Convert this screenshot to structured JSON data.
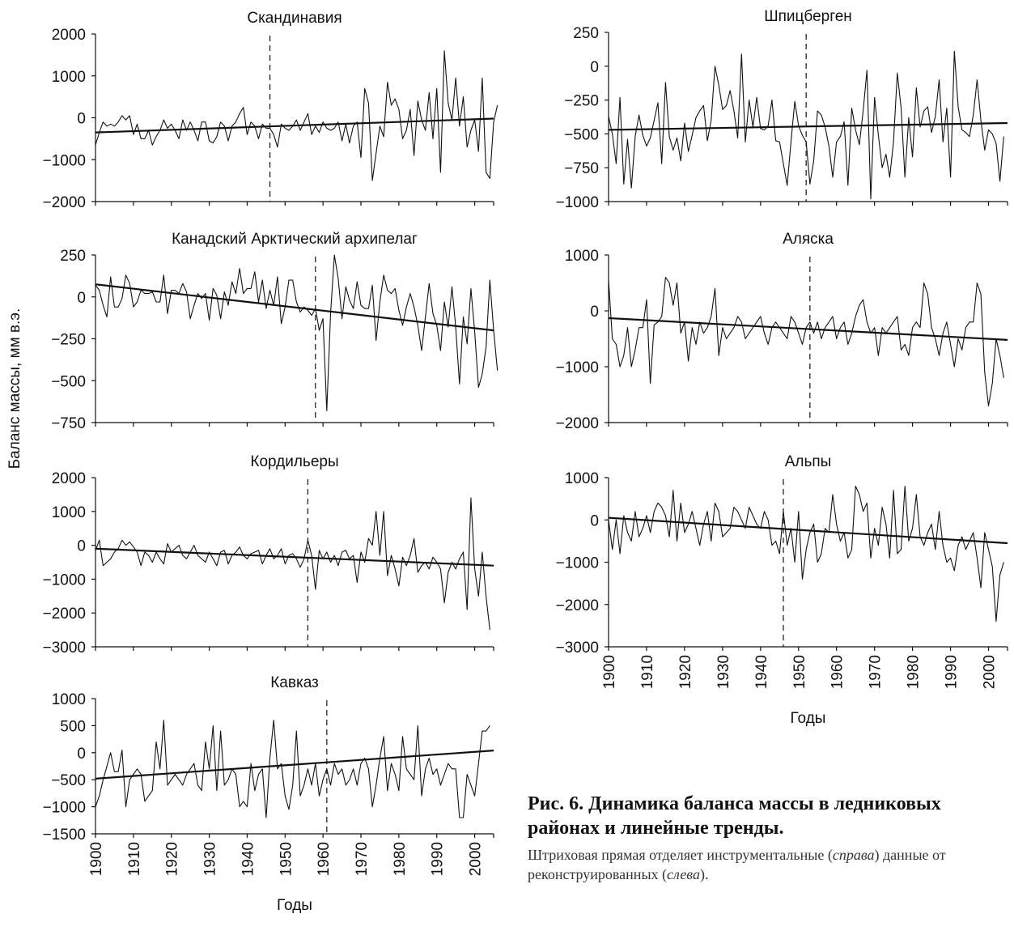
{
  "figure": {
    "ylabel": "Баланс массы, мм в.э.",
    "xlabel": "Годы",
    "caption_title": "Рис. 6. Динамика баланса массы в ледниковых районах и линейные тренды.",
    "caption_note_parts": [
      "Штриховая прямая отделяет инструментальные (",
      "справа",
      ") данные от реконструированных (",
      "слева",
      ")."
    ]
  },
  "chart_data": [
    {
      "type": "line",
      "title": "Скандинавия",
      "xlim": [
        1900,
        2005
      ],
      "ylim": [
        -2000,
        2000
      ],
      "yticks": [
        2000,
        1000,
        0,
        -1000,
        -2000
      ],
      "divider_year": 1946,
      "trend": [
        [
          1900,
          -350
        ],
        [
          2005,
          -20
        ]
      ],
      "series": [
        {
          "x_start": 1900,
          "values": [
            -650,
            -350,
            -100,
            -200,
            -150,
            -200,
            -100,
            50,
            -50,
            50,
            -400,
            -150,
            -500,
            -500,
            -300,
            -650,
            -450,
            -300,
            -50,
            -250,
            -150,
            -300,
            -500,
            -50,
            -300,
            -100,
            -300,
            -550,
            -100,
            -100,
            -550,
            -600,
            -450,
            -100,
            -200,
            -550,
            -200,
            -100,
            100,
            250,
            -400,
            -100,
            -200,
            -500,
            -150,
            -250,
            -250,
            -400,
            -700,
            -150,
            -250,
            -300,
            -200,
            -50,
            -300,
            -100,
            100,
            -400,
            -200,
            -350,
            -100,
            -250,
            -300,
            -250,
            -100,
            -550,
            -150,
            -600,
            -200,
            -100,
            -950,
            700,
            350,
            -1500,
            -850,
            -200,
            -450,
            850,
            300,
            450,
            200,
            -500,
            -300,
            200,
            -900,
            400,
            -50,
            -300,
            600,
            -500,
            700,
            -1300,
            1600,
            350,
            -50,
            950,
            -200,
            500,
            -700,
            -300,
            -50,
            -800,
            950,
            -1300,
            -1450,
            -100,
            300
          ]
        }
      ]
    },
    {
      "type": "line",
      "title": "Канадский Арктический архипелаг",
      "xlim": [
        1900,
        2005
      ],
      "ylim": [
        -750,
        250
      ],
      "yticks": [
        250,
        0,
        -250,
        -500,
        -750
      ],
      "divider_year": 1958,
      "trend": [
        [
          1900,
          75
        ],
        [
          2005,
          -200
        ]
      ],
      "series": [
        {
          "x_start": 1900,
          "values": [
            70,
            40,
            -50,
            -120,
            120,
            -60,
            -60,
            -10,
            130,
            80,
            -60,
            -30,
            40,
            20,
            20,
            30,
            -30,
            -30,
            130,
            -100,
            40,
            40,
            20,
            80,
            30,
            -130,
            -50,
            20,
            -10,
            20,
            -140,
            50,
            10,
            -130,
            30,
            -50,
            90,
            20,
            170,
            20,
            50,
            50,
            150,
            -30,
            100,
            -70,
            40,
            -50,
            120,
            -160,
            -60,
            100,
            100,
            -30,
            -90,
            -60,
            -80,
            -110,
            -70,
            -200,
            -130,
            -680,
            -100,
            250,
            110,
            -130,
            60,
            -20,
            -70,
            90,
            -50,
            -70,
            -70,
            70,
            -260,
            -30,
            130,
            40,
            20,
            50,
            -80,
            -170,
            -60,
            20,
            -60,
            -170,
            -320,
            -120,
            80,
            -100,
            -170,
            -320,
            -30,
            -180,
            60,
            -180,
            -520,
            -120,
            -280,
            50,
            -210,
            -540,
            -460,
            -300,
            100,
            -200,
            -440
          ]
        }
      ]
    },
    {
      "type": "line",
      "title": "Кордильеры",
      "xlim": [
        1900,
        2005
      ],
      "ylim": [
        -3000,
        2000
      ],
      "yticks": [
        2000,
        1000,
        0,
        -1000,
        -2000,
        -3000
      ],
      "divider_year": 1956,
      "trend": [
        [
          1900,
          -100
        ],
        [
          2005,
          -600
        ]
      ],
      "series": [
        {
          "x_start": 1900,
          "values": [
            -150,
            150,
            -600,
            -500,
            -400,
            -200,
            -100,
            150,
            0,
            100,
            -50,
            -200,
            -600,
            -200,
            -300,
            -500,
            -200,
            -400,
            -550,
            50,
            -200,
            -100,
            0,
            -300,
            -400,
            -200,
            0,
            -300,
            -400,
            -500,
            -200,
            -400,
            -600,
            -200,
            -150,
            -550,
            -300,
            -200,
            -50,
            -300,
            -400,
            -250,
            -200,
            -150,
            -550,
            -300,
            -100,
            -400,
            -300,
            -100,
            -550,
            -300,
            -250,
            -400,
            -650,
            -400,
            150,
            -300,
            -1300,
            -150,
            -400,
            -200,
            -500,
            -300,
            -600,
            -200,
            -150,
            -400,
            -300,
            -1100,
            -200,
            -500,
            200,
            0,
            1000,
            -300,
            1000,
            -900,
            -300,
            -700,
            -1200,
            -350,
            -600,
            -300,
            200,
            -800,
            -600,
            -500,
            -700,
            -350,
            -500,
            -700,
            -1700,
            -800,
            -500,
            -700,
            -400,
            -200,
            -1900,
            1400,
            -700,
            -1500,
            -200,
            -1500,
            -2500
          ]
        }
      ]
    },
    {
      "type": "line",
      "title": "Кавказ",
      "xlim": [
        1900,
        2005
      ],
      "ylim": [
        -1500,
        1000
      ],
      "yticks": [
        1000,
        500,
        0,
        -500,
        -1000,
        -1500
      ],
      "divider_year": 1961,
      "trend": [
        [
          1900,
          -480
        ],
        [
          2005,
          40
        ]
      ],
      "series": [
        {
          "x_start": 1900,
          "values": [
            -1000,
            -800,
            -500,
            -250,
            0,
            -350,
            -350,
            50,
            -1000,
            -500,
            -400,
            -300,
            -400,
            -900,
            -800,
            -700,
            200,
            -300,
            600,
            -600,
            -500,
            -400,
            -500,
            -600,
            -400,
            -300,
            -200,
            -600,
            -700,
            200,
            -300,
            500,
            -700,
            400,
            -600,
            -500,
            -300,
            -400,
            -1000,
            -900,
            -1000,
            -200,
            -700,
            -400,
            -300,
            -1200,
            -100,
            600,
            -300,
            -200,
            -800,
            -1050,
            -600,
            400,
            -800,
            -600,
            -300,
            -600,
            -200,
            -800,
            -500,
            -300,
            -600,
            -200,
            -400,
            -300,
            -600,
            -500,
            -300,
            -600,
            -200,
            -100,
            -300,
            -1000,
            -600,
            -100,
            300,
            -700,
            -200,
            -400,
            -700,
            300,
            -300,
            -400,
            -500,
            500,
            -800,
            -300,
            -100,
            -400,
            -300,
            -600,
            -400,
            -200,
            -300,
            -300,
            -1200,
            -1200,
            -400,
            -600,
            -800,
            -200,
            400,
            400,
            500
          ]
        }
      ]
    },
    {
      "type": "line",
      "title": "Шпицберген",
      "xlim": [
        1900,
        2005
      ],
      "ylim": [
        -1000,
        250
      ],
      "yticks": [
        250,
        0,
        -250,
        -500,
        -750,
        -1000
      ],
      "divider_year": 1952,
      "trend": [
        [
          1900,
          -470
        ],
        [
          2005,
          -420
        ]
      ],
      "series": [
        {
          "x_start": 1900,
          "values": [
            -370,
            -500,
            -720,
            -230,
            -870,
            -540,
            -900,
            -520,
            -360,
            -510,
            -590,
            -530,
            -400,
            -270,
            -720,
            -120,
            -520,
            -620,
            -530,
            -700,
            -420,
            -630,
            -510,
            -380,
            -330,
            -290,
            -550,
            -400,
            0,
            -140,
            -320,
            -290,
            -180,
            -330,
            -530,
            90,
            -560,
            -250,
            -450,
            -230,
            -460,
            -470,
            -440,
            -250,
            -550,
            -560,
            -720,
            -880,
            -560,
            -260,
            -440,
            -510,
            -560,
            -870,
            -700,
            -330,
            -360,
            -450,
            -590,
            -820,
            -560,
            -520,
            -410,
            -880,
            -310,
            -470,
            -580,
            -330,
            -30,
            -980,
            -230,
            -510,
            -750,
            -650,
            -820,
            -560,
            -50,
            -310,
            -820,
            -380,
            -670,
            -160,
            -450,
            -330,
            -300,
            -490,
            -370,
            -100,
            -560,
            -310,
            -820,
            110,
            -300,
            -470,
            -490,
            -520,
            -360,
            -100,
            -400,
            -620,
            -470,
            -500,
            -570,
            -850,
            -520
          ]
        }
      ]
    },
    {
      "type": "line",
      "title": "Аляска",
      "xlim": [
        1900,
        2005
      ],
      "ylim": [
        -2000,
        1000
      ],
      "yticks": [
        1000,
        0,
        -1000,
        -2000
      ],
      "divider_year": 1953,
      "trend": [
        [
          1900,
          -130
        ],
        [
          2005,
          -520
        ]
      ],
      "series": [
        {
          "x_start": 1900,
          "values": [
            550,
            -500,
            -600,
            -1000,
            -800,
            -300,
            -1000,
            -700,
            -300,
            -300,
            200,
            -1300,
            -250,
            -200,
            -100,
            600,
            500,
            100,
            500,
            -400,
            -200,
            -900,
            -300,
            -600,
            -200,
            -400,
            -300,
            -100,
            400,
            -800,
            -300,
            -500,
            -400,
            -300,
            -100,
            -200,
            -500,
            -400,
            -300,
            -200,
            -100,
            -400,
            -600,
            -300,
            -200,
            -300,
            -400,
            -500,
            -100,
            -200,
            -400,
            -600,
            -300,
            -200,
            -400,
            -200,
            -500,
            -300,
            -200,
            -100,
            -500,
            -300,
            -200,
            -600,
            -400,
            -100,
            100,
            200,
            -200,
            -400,
            -300,
            -800,
            -300,
            -400,
            -300,
            -200,
            -100,
            -700,
            -600,
            -800,
            -300,
            -200,
            -300,
            500,
            300,
            -300,
            -500,
            -800,
            -400,
            -200,
            -600,
            -1000,
            -500,
            -700,
            -300,
            -200,
            -200,
            500,
            300,
            -1100,
            -1700,
            -1300,
            -500,
            -800,
            -1200
          ]
        }
      ]
    },
    {
      "type": "line",
      "title": "Альпы",
      "xlim": [
        1900,
        2005
      ],
      "ylim": [
        -3000,
        1000
      ],
      "yticks": [
        1000,
        0,
        -1000,
        -2000,
        -3000
      ],
      "divider_year": 1946,
      "trend": [
        [
          1900,
          50
        ],
        [
          2005,
          -550
        ]
      ],
      "series": [
        {
          "x_start": 1900,
          "values": [
            0,
            -700,
            0,
            -800,
            100,
            -300,
            -500,
            200,
            -400,
            -200,
            100,
            -300,
            200,
            400,
            300,
            100,
            -400,
            700,
            -500,
            400,
            -300,
            -100,
            200,
            -200,
            -600,
            -100,
            200,
            -500,
            400,
            200,
            -400,
            -300,
            -200,
            300,
            200,
            0,
            -200,
            300,
            100,
            -100,
            -200,
            200,
            0,
            -600,
            -500,
            -800,
            200,
            -600,
            -200,
            -1000,
            200,
            -1400,
            -700,
            -300,
            -100,
            -1000,
            -800,
            -200,
            -300,
            600,
            -100,
            -500,
            -300,
            -900,
            -700,
            800,
            600,
            200,
            400,
            -900,
            -200,
            -600,
            300,
            -100,
            -900,
            700,
            -800,
            -700,
            800,
            -500,
            -200,
            600,
            -400,
            -600,
            -300,
            -100,
            -700,
            200,
            -600,
            -1000,
            -900,
            -1200,
            -600,
            -400,
            -700,
            -500,
            -300,
            -900,
            -1600,
            -300,
            -700,
            -1100,
            -2400,
            -1300,
            -1000
          ]
        }
      ]
    }
  ]
}
